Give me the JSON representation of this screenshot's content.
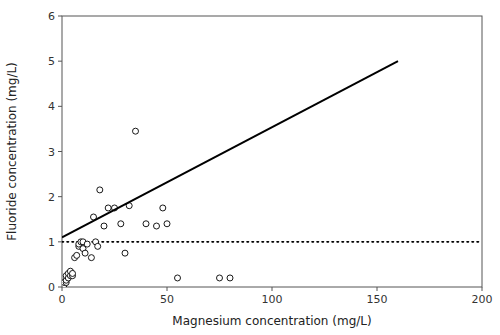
{
  "chart_data": {
    "type": "scatter",
    "xlabel": "Magnesium concentration (mg/L)",
    "ylabel": "Fluoride concentration (mg/L)",
    "xlim": [
      0,
      200
    ],
    "ylim": [
      0,
      6
    ],
    "xticks": [
      0,
      50,
      100,
      150,
      200
    ],
    "yticks": [
      0,
      1,
      2,
      3,
      4,
      5,
      6
    ],
    "grid": false,
    "series": [
      {
        "type": "scatter",
        "marker": "circle",
        "color": "black",
        "x": [
          1,
          1,
          2,
          2,
          2,
          3,
          3,
          4,
          4,
          5,
          5,
          6,
          7,
          8,
          8,
          9,
          10,
          10,
          11,
          12,
          14,
          15,
          16,
          17,
          18,
          20,
          22,
          25,
          28,
          30,
          32,
          35,
          40,
          45,
          48,
          50,
          55,
          75,
          80
        ],
        "values": [
          0.05,
          0.1,
          0.1,
          0.15,
          0.25,
          0.2,
          0.3,
          0.25,
          0.35,
          0.25,
          0.3,
          0.65,
          0.7,
          0.9,
          0.95,
          1.0,
          0.85,
          1.0,
          0.75,
          0.95,
          0.65,
          1.55,
          1.0,
          0.9,
          2.15,
          1.35,
          1.75,
          1.75,
          1.4,
          0.75,
          1.8,
          3.45,
          1.4,
          1.35,
          1.75,
          1.4,
          0.2,
          0.2,
          0.2
        ]
      },
      {
        "type": "line",
        "color": "black",
        "line_style": "solid",
        "x": [
          0,
          160
        ],
        "values": [
          1.1,
          5.0
        ]
      },
      {
        "type": "hline",
        "color": "black",
        "line_style": "dotted",
        "values": [
          1.0
        ]
      }
    ]
  }
}
